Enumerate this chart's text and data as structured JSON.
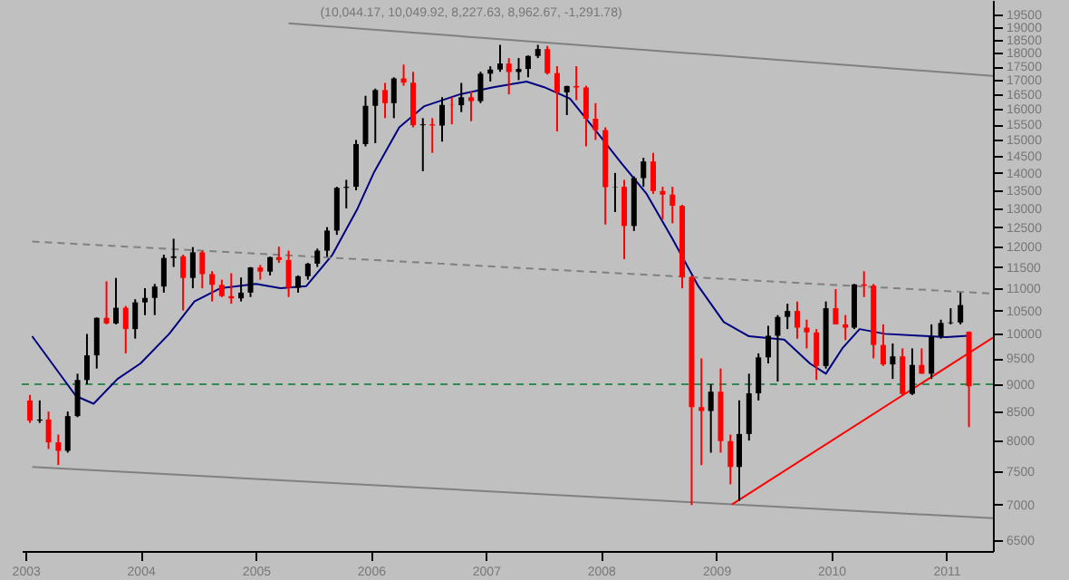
{
  "chart_data": {
    "type": "candlestick",
    "title": "(10,044.17, 10,049.92, 8,227.63, 8,962.67, -1,291.78)",
    "x": [
      "2003-01-15",
      "2003-02-15",
      "2003-03-15",
      "2003-04-15",
      "2003-05-15",
      "2003-06-15",
      "2003-07-15",
      "2003-08-15",
      "2003-09-15",
      "2003-10-15",
      "2003-11-15",
      "2003-12-15",
      "2004-01-15",
      "2004-02-15",
      "2004-03-15",
      "2004-04-15",
      "2004-05-15",
      "2004-06-15",
      "2004-07-15",
      "2004-08-15",
      "2004-09-15",
      "2004-10-15",
      "2004-11-15",
      "2004-12-15",
      "2005-01-15",
      "2005-02-15",
      "2005-03-15",
      "2005-04-15",
      "2005-05-15",
      "2005-06-15",
      "2005-07-15",
      "2005-08-15",
      "2005-09-15",
      "2005-10-15",
      "2005-11-15",
      "2005-12-15",
      "2006-01-15",
      "2006-02-15",
      "2006-03-15",
      "2006-04-15",
      "2006-05-15",
      "2006-06-15",
      "2006-07-15",
      "2006-08-15",
      "2006-09-15",
      "2006-10-15",
      "2006-11-15",
      "2006-12-15",
      "2007-01-15",
      "2007-02-15",
      "2007-03-15",
      "2007-04-15",
      "2007-05-15",
      "2007-06-15",
      "2007-07-15",
      "2007-08-15",
      "2007-09-15",
      "2007-10-15",
      "2007-11-15",
      "2007-12-15",
      "2008-01-15",
      "2008-02-15",
      "2008-03-15",
      "2008-04-15",
      "2008-05-15",
      "2008-06-15",
      "2008-07-15",
      "2008-08-15",
      "2008-09-15",
      "2008-10-15",
      "2008-11-15",
      "2008-12-15",
      "2009-01-15",
      "2009-02-15",
      "2009-03-15",
      "2009-04-15",
      "2009-05-15",
      "2009-06-15",
      "2009-07-15",
      "2009-08-15",
      "2009-09-15",
      "2009-10-15",
      "2009-11-15",
      "2009-12-15",
      "2010-01-15",
      "2010-02-15",
      "2010-03-15",
      "2010-04-15",
      "2010-05-15",
      "2010-06-15",
      "2010-07-15",
      "2010-08-15",
      "2010-09-15",
      "2010-10-15",
      "2010-11-15",
      "2010-12-15",
      "2011-01-15",
      "2011-02-15",
      "2011-03-14"
    ],
    "ohlc": [
      [
        8700,
        8800,
        8300,
        8340
      ],
      [
        8340,
        8700,
        8300,
        8360
      ],
      [
        8360,
        8500,
        7860,
        7970
      ],
      [
        7970,
        8100,
        7600,
        7830
      ],
      [
        7830,
        8500,
        7800,
        8420
      ],
      [
        8420,
        9200,
        8400,
        9080
      ],
      [
        9080,
        10000,
        9000,
        9560
      ],
      [
        9560,
        10350,
        9300,
        10340
      ],
      [
        10340,
        11160,
        10200,
        10220
      ],
      [
        10220,
        11240,
        10200,
        10560
      ],
      [
        10560,
        10600,
        9600,
        10100
      ],
      [
        10100,
        10750,
        9900,
        10680
      ],
      [
        10680,
        11000,
        10400,
        10780
      ],
      [
        10780,
        11100,
        10400,
        11040
      ],
      [
        11040,
        11800,
        10900,
        11720
      ],
      [
        11720,
        12200,
        11500,
        11760
      ],
      [
        11760,
        11800,
        10500,
        11240
      ],
      [
        11240,
        11990,
        11000,
        11860
      ],
      [
        11860,
        11900,
        11000,
        11330
      ],
      [
        11330,
        11400,
        10700,
        11080
      ],
      [
        11080,
        11200,
        10800,
        10820
      ],
      [
        10820,
        11350,
        10650,
        10770
      ],
      [
        10770,
        11250,
        10700,
        10900
      ],
      [
        10900,
        11500,
        10800,
        11490
      ],
      [
        11490,
        11550,
        11200,
        11390
      ],
      [
        11390,
        11750,
        11300,
        11740
      ],
      [
        11740,
        12000,
        11600,
        11670
      ],
      [
        11670,
        11900,
        10800,
        11010
      ],
      [
        11010,
        11300,
        10900,
        11280
      ],
      [
        11280,
        11600,
        11200,
        11580
      ],
      [
        11580,
        11950,
        11500,
        11900
      ],
      [
        11900,
        12500,
        11750,
        12410
      ],
      [
        12410,
        13600,
        12300,
        13570
      ],
      [
        13570,
        13800,
        13000,
        13600
      ],
      [
        13600,
        15000,
        13500,
        14870
      ],
      [
        14870,
        16450,
        14800,
        16110
      ],
      [
        16110,
        16700,
        14900,
        16650
      ],
      [
        16650,
        16900,
        15700,
        16200
      ],
      [
        16200,
        17100,
        15700,
        17060
      ],
      [
        17060,
        17560,
        16800,
        16910
      ],
      [
        16910,
        17300,
        15400,
        15470
      ],
      [
        15470,
        15700,
        14050,
        15500
      ],
      [
        15500,
        15700,
        14600,
        15460
      ],
      [
        15460,
        16400,
        14950,
        16140
      ],
      [
        16140,
        16400,
        15500,
        16130
      ],
      [
        16130,
        16900,
        15900,
        16400
      ],
      [
        16400,
        16600,
        15600,
        16270
      ],
      [
        16270,
        17300,
        16200,
        17230
      ],
      [
        17230,
        17500,
        16950,
        17380
      ],
      [
        17380,
        18300,
        17300,
        17600
      ],
      [
        17600,
        17800,
        16500,
        17290
      ],
      [
        17290,
        17800,
        17000,
        17400
      ],
      [
        17400,
        17900,
        17100,
        17880
      ],
      [
        17880,
        18300,
        17800,
        18140
      ],
      [
        18140,
        18260,
        17200,
        17250
      ],
      [
        17250,
        17500,
        15270,
        16570
      ],
      [
        16570,
        16800,
        15800,
        16790
      ],
      [
        16790,
        17500,
        16300,
        16740
      ],
      [
        16740,
        16800,
        14800,
        15680
      ],
      [
        15680,
        16200,
        15000,
        15310
      ],
      [
        15310,
        15400,
        12570,
        13590
      ],
      [
        13590,
        14000,
        12900,
        13600
      ],
      [
        13600,
        13800,
        11690,
        12530
      ],
      [
        12530,
        13900,
        12400,
        13850
      ],
      [
        13850,
        14450,
        13600,
        14340
      ],
      [
        14340,
        14600,
        13400,
        13480
      ],
      [
        13480,
        13600,
        12700,
        13380
      ],
      [
        13380,
        13600,
        12600,
        13070
      ],
      [
        13070,
        13100,
        11000,
        11260
      ],
      [
        11260,
        11300,
        6990,
        8580
      ],
      [
        8580,
        9500,
        7600,
        8510
      ],
      [
        8510,
        9000,
        7800,
        8860
      ],
      [
        8860,
        9300,
        7800,
        7990
      ],
      [
        7990,
        8100,
        7300,
        7570
      ],
      [
        7570,
        8700,
        7050,
        8110
      ],
      [
        8110,
        9200,
        8000,
        8830
      ],
      [
        8830,
        9600,
        8700,
        9520
      ],
      [
        9520,
        10170,
        9400,
        9960
      ],
      [
        9960,
        10400,
        9050,
        10360
      ],
      [
        10360,
        10650,
        10100,
        10490
      ],
      [
        10490,
        10700,
        9900,
        10130
      ],
      [
        10130,
        10300,
        9700,
        10030
      ],
      [
        10030,
        10100,
        9080,
        9350
      ],
      [
        9350,
        10700,
        9300,
        10550
      ],
      [
        10550,
        10980,
        10200,
        10200
      ],
      [
        10200,
        10400,
        9870,
        10130
      ],
      [
        10130,
        11100,
        10100,
        11090
      ],
      [
        11090,
        11400,
        10800,
        11060
      ],
      [
        11060,
        11100,
        9500,
        9770
      ],
      [
        9770,
        10200,
        9350,
        9380
      ],
      [
        9380,
        9800,
        9100,
        9540
      ],
      [
        9540,
        9700,
        8800,
        8820
      ],
      [
        8820,
        9700,
        8800,
        9370
      ],
      [
        9370,
        9700,
        9200,
        9200
      ],
      [
        9200,
        10200,
        9100,
        9940
      ],
      [
        9940,
        10300,
        9900,
        10230
      ],
      [
        10230,
        10550,
        10200,
        10240
      ],
      [
        10240,
        10900,
        10200,
        10620
      ],
      [
        10044.17,
        10049.92,
        8227.63,
        8962.67
      ]
    ],
    "colors": [
      "#ff0000",
      "#000000",
      "#ff0000",
      "#ff0000",
      "#000000",
      "#000000",
      "#000000",
      "#000000",
      "#ff0000",
      "#000000",
      "#ff0000",
      "#000000",
      "#000000",
      "#000000",
      "#000000",
      "#000000",
      "#ff0000",
      "#000000",
      "#ff0000",
      "#ff0000",
      "#ff0000",
      "#ff0000",
      "#000000",
      "#000000",
      "#ff0000",
      "#000000",
      "#ff0000",
      "#ff0000",
      "#000000",
      "#000000",
      "#000000",
      "#000000",
      "#000000",
      "#000000",
      "#000000",
      "#000000",
      "#000000",
      "#ff0000",
      "#000000",
      "#ff0000",
      "#ff0000",
      "#000000",
      "#ff0000",
      "#000000",
      "#ff0000",
      "#000000",
      "#ff0000",
      "#000000",
      "#000000",
      "#000000",
      "#ff0000",
      "#000000",
      "#000000",
      "#000000",
      "#ff0000",
      "#ff0000",
      "#000000",
      "#ff0000",
      "#ff0000",
      "#ff0000",
      "#ff0000",
      "#000000",
      "#ff0000",
      "#000000",
      "#000000",
      "#ff0000",
      "#ff0000",
      "#ff0000",
      "#ff0000",
      "#ff0000",
      "#ff0000",
      "#000000",
      "#ff0000",
      "#ff0000",
      "#000000",
      "#000000",
      "#000000",
      "#000000",
      "#000000",
      "#000000",
      "#ff0000",
      "#ff0000",
      "#ff0000",
      "#000000",
      "#ff0000",
      "#ff0000",
      "#000000",
      "#ff0000",
      "#ff0000",
      "#ff0000",
      "#000000",
      "#ff0000",
      "#000000",
      "#ff0000",
      "#000000",
      "#000000",
      "#000000",
      "#000000",
      "#ff0000"
    ],
    "series": [
      {
        "type": "line",
        "color": "#000080",
        "x": [
          "2003-01-22",
          "2003-06-10",
          "2003-08-05",
          "2003-10-20",
          "2004-01-01",
          "2004-04-01",
          "2004-06-20",
          "2004-09-10",
          "2005-01-01",
          "2005-03-20",
          "2005-06-10",
          "2005-09-01",
          "2005-11-20",
          "2006-01-10",
          "2006-04-01",
          "2006-06-20",
          "2006-10-10",
          "2007-01-25",
          "2007-05-10",
          "2007-07-05",
          "2007-09-25",
          "2007-12-15",
          "2008-03-05",
          "2008-05-25",
          "2008-08-15",
          "2008-11-05",
          "2009-01-25",
          "2009-04-15",
          "2009-08-05",
          "2009-10-25",
          "2009-12-15",
          "2010-02-05",
          "2010-04-01",
          "2010-06-20",
          "2010-10-10",
          "2011-01-01",
          "2011-03-10"
        ],
        "values": [
          9950,
          8780,
          8640,
          9100,
          9400,
          10000,
          10700,
          11000,
          11100,
          11000,
          11050,
          11800,
          13000,
          14000,
          15400,
          16100,
          16500,
          16750,
          16950,
          16750,
          16350,
          15300,
          14300,
          13400,
          12200,
          11050,
          10250,
          9950,
          9880,
          9400,
          9200,
          9700,
          10100,
          10000,
          9960,
          9930,
          9960
        ]
      },
      {
        "type": "line",
        "color": "#808080",
        "x": [
          "2005-04-15",
          "2011-05-29"
        ],
        "values": [
          19140,
          17150
        ]
      },
      {
        "type": "line",
        "color": "#808080",
        "x": [
          "2003-01-22",
          "2011-05-29"
        ],
        "values": [
          7570,
          6800
        ]
      },
      {
        "type": "line",
        "color": "#808080",
        "line_style": "dashed",
        "x": [
          "2003-01-22",
          "2011-05-29"
        ],
        "values": [
          12130,
          10880
        ]
      },
      {
        "type": "line",
        "color": "#ff0000",
        "x": [
          "2009-02-20",
          "2011-05-29"
        ],
        "values": [
          7000,
          9920
        ]
      }
    ],
    "ref_lines": [
      {
        "axis": "y",
        "value": 9000,
        "color": "#2e8b57",
        "line_style": "dashed"
      }
    ],
    "log": "y",
    "xlim": [
      "2002-12-20",
      "2011-05-29"
    ],
    "xticks": [
      "2003",
      "2004",
      "2005",
      "2006",
      "2007",
      "2008",
      "2009",
      "2010",
      "2011"
    ],
    "ylim": [
      6350,
      20100
    ],
    "yticks": [
      6500,
      7000,
      7500,
      8000,
      8500,
      9000,
      9500,
      10000,
      10500,
      11000,
      11500,
      12000,
      12500,
      13000,
      13500,
      14000,
      14500,
      15000,
      15500,
      16000,
      16500,
      17000,
      17500,
      18000,
      18500,
      19000,
      19500
    ]
  }
}
